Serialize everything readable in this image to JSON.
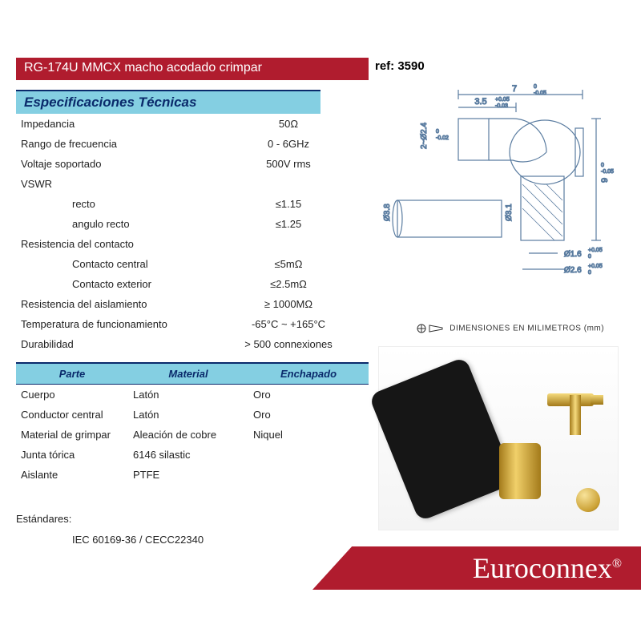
{
  "header": {
    "title": "RG-174U MMCX macho acodado crimpar",
    "ref_label": "ref:",
    "ref_value": "3590"
  },
  "spec": {
    "heading": "Especificaciones Técnicas",
    "rows": [
      {
        "label": "Impedancia",
        "value": "50Ω"
      },
      {
        "label": "Rango de frecuencia",
        "value": "0 - 6GHz"
      },
      {
        "label": "Voltaje soportado",
        "value": "500V rms"
      },
      {
        "label": "VSWR",
        "value": ""
      },
      {
        "label": "recto",
        "value": "≤1.15",
        "sub": true
      },
      {
        "label": "angulo recto",
        "value": "≤1.25",
        "sub": true
      },
      {
        "label": "Resistencia del contacto",
        "value": ""
      },
      {
        "label": "Contacto central",
        "value": "≤5mΩ",
        "sub": true
      },
      {
        "label": "Contacto exterior",
        "value": "≤2.5mΩ",
        "sub": true
      },
      {
        "label": "Resistencia del aislamiento",
        "value": "≥ 1000MΩ"
      },
      {
        "label": "Temperatura de funcionamiento",
        "value": "-65°C ~ +165°C"
      },
      {
        "label": "Durabilidad",
        "value": "> 500 connexiones"
      }
    ]
  },
  "materials": {
    "columns": [
      "Parte",
      "Material",
      "Enchapado"
    ],
    "rows": [
      [
        "Cuerpo",
        "Latón",
        "Oro"
      ],
      [
        "Conductor central",
        "Latón",
        "Oro"
      ],
      [
        "Material de grimpar",
        "Aleación de cobre",
        "Niquel"
      ],
      [
        "Junta tórica",
        "6146 silastic",
        ""
      ],
      [
        "Aislante",
        "PTFE",
        ""
      ]
    ]
  },
  "standards": {
    "label": "Estándares:",
    "value": "IEC 60169-36 / CECC22340"
  },
  "drawing": {
    "dimensions_label": "DIMENSIONES EN MILIMETROS (mm)",
    "dims": {
      "width_top": "7",
      "width_top_tol": "0\n-0.05",
      "notch": "3.5",
      "notch_tol": "+0.05\n-0.03",
      "diam_inner": "2~Ø2.4",
      "diam_inner_tol": "0\n-0.02",
      "height": "9",
      "height_tol": "0\n-0.05",
      "crimp_diam": "Ø3.8",
      "sleeve_diam": "Ø3.1",
      "pin1": "Ø1.6",
      "pin1_tol": "+0.05\n0",
      "pin2": "Ø2.6",
      "pin2_tol": "+0.05\n0"
    },
    "colors": {
      "line": "#5a7ca0",
      "text": "#333333"
    }
  },
  "brand": {
    "name": "Euroconnex",
    "reg": "®"
  },
  "colors": {
    "accent_red": "#b01c2e",
    "accent_cyan": "#84cfe2",
    "accent_navy": "#0a2a6b"
  }
}
